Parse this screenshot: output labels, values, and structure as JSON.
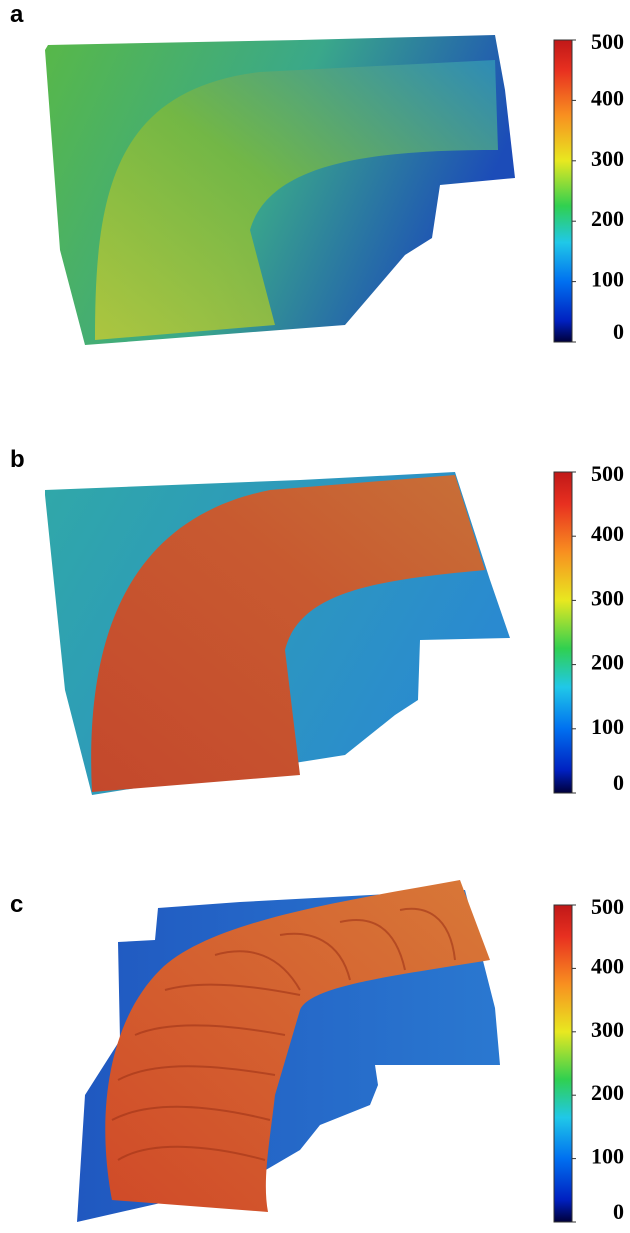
{
  "chart_data": [
    {
      "type": "surface",
      "title": "a",
      "colorbar": {
        "lim": [
          0,
          500
        ],
        "ticks": [
          0,
          100,
          200,
          300,
          400,
          500
        ]
      }
    },
    {
      "type": "surface",
      "title": "b",
      "colorbar": {
        "lim": [
          0,
          500
        ],
        "ticks": [
          0,
          100,
          200,
          300,
          400,
          500
        ]
      }
    },
    {
      "type": "surface",
      "title": "c",
      "colorbar": {
        "lim": [
          0,
          500
        ],
        "ticks": [
          0,
          100,
          200,
          300,
          400,
          500
        ]
      }
    }
  ]
}
